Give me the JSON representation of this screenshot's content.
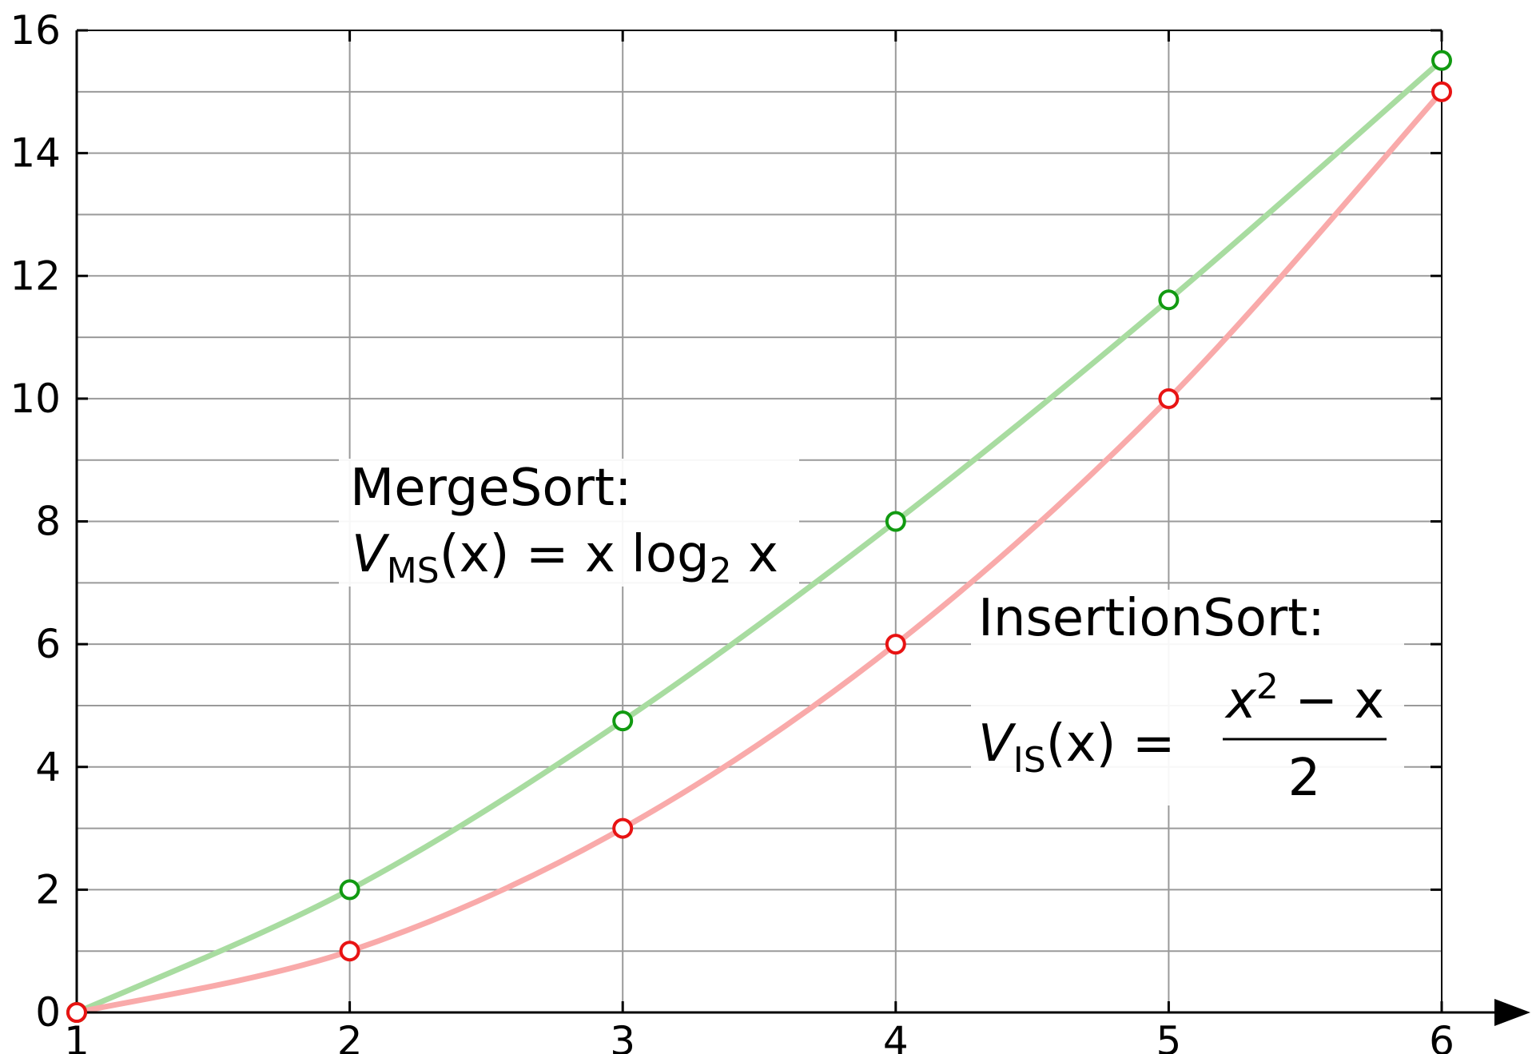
{
  "chart_data": {
    "type": "line",
    "x_ticks": [
      1,
      2,
      3,
      4,
      5,
      6
    ],
    "y_ticks": [
      0,
      2,
      4,
      6,
      8,
      10,
      12,
      14,
      16
    ],
    "xlim": [
      1,
      6
    ],
    "ylim": [
      0,
      16
    ],
    "grid": true,
    "series": [
      {
        "name": "MergeSort",
        "line_color": "#a8dca0",
        "marker_color": "#119a11",
        "points": [
          {
            "x": 1,
            "y": 0
          },
          {
            "x": 2,
            "y": 2
          },
          {
            "x": 3,
            "y": 4.75
          },
          {
            "x": 4,
            "y": 8
          },
          {
            "x": 5,
            "y": 11.61
          },
          {
            "x": 6,
            "y": 15.51
          }
        ]
      },
      {
        "name": "InsertionSort",
        "line_color": "#f9aaaa",
        "marker_color": "#e81313",
        "points": [
          {
            "x": 1,
            "y": 0
          },
          {
            "x": 2,
            "y": 1
          },
          {
            "x": 3,
            "y": 3
          },
          {
            "x": 4,
            "y": 6
          },
          {
            "x": 5,
            "y": 10
          },
          {
            "x": 6,
            "y": 15
          }
        ]
      }
    ],
    "annotations": {
      "merge": {
        "title": "MergeSort:",
        "V": "V",
        "sub": "MS",
        "eq_mid": "(x) = x log",
        "base": "2",
        "eq_end": " x"
      },
      "insertion": {
        "title": "InsertionSort:",
        "V": "V",
        "sub": "IS",
        "eq_mid": "(x) =",
        "num_x": "x",
        "num_exp": "2",
        "num_end": " − x",
        "den": "2"
      }
    }
  }
}
